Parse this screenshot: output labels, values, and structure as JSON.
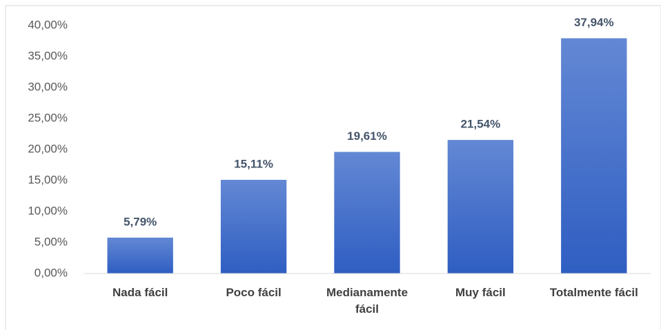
{
  "chart_data": {
    "type": "bar",
    "categories": [
      "Nada fácil",
      "Poco fácil",
      "Medianamente fácil",
      "Muy fácil",
      "Totalmente fácil"
    ],
    "values": [
      5.79,
      15.11,
      19.61,
      21.54,
      37.94
    ],
    "value_labels": [
      "5,79%",
      "15,11%",
      "19,61%",
      "21,54%",
      "37,94%"
    ],
    "color": [
      "#6388d4",
      "#2f5ec2"
    ],
    "ylim": [
      0,
      40
    ],
    "yticks": [
      {
        "value": 0,
        "label": "0,00%"
      },
      {
        "value": 5,
        "label": "5,00%"
      },
      {
        "value": 10,
        "label": "10,00%"
      },
      {
        "value": 15,
        "label": "15,00%"
      },
      {
        "value": 20,
        "label": "20,00%"
      },
      {
        "value": 25,
        "label": "25,00%"
      },
      {
        "value": 30,
        "label": "30,00%"
      },
      {
        "value": 35,
        "label": "35,00%"
      },
      {
        "value": 40,
        "label": "40,00%"
      }
    ],
    "grid": false
  }
}
